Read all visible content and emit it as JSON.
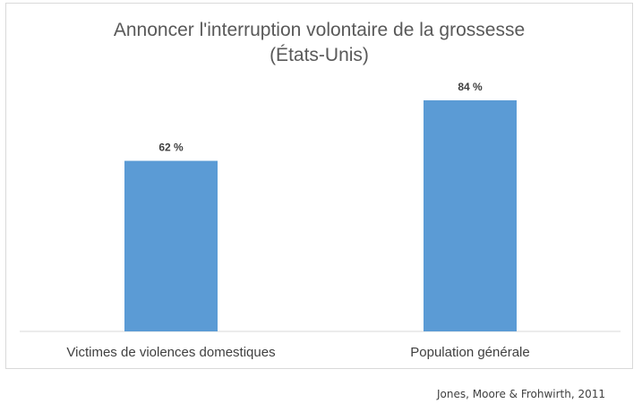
{
  "chart_data": {
    "type": "bar",
    "title": "Annoncer l'interruption volontaire de la grossesse",
    "subtitle": "(États-Unis)",
    "categories": [
      "Victimes de violences domestiques",
      "Population générale"
    ],
    "values": [
      62,
      84
    ],
    "data_labels": [
      "62 %",
      "84 %"
    ],
    "xlabel": "",
    "ylabel": "",
    "ylim": [
      0,
      100
    ],
    "grid": false,
    "legend": "none",
    "bar_color": "#5b9bd5"
  },
  "source": "Jones, Moore & Frohwirth, 2011"
}
